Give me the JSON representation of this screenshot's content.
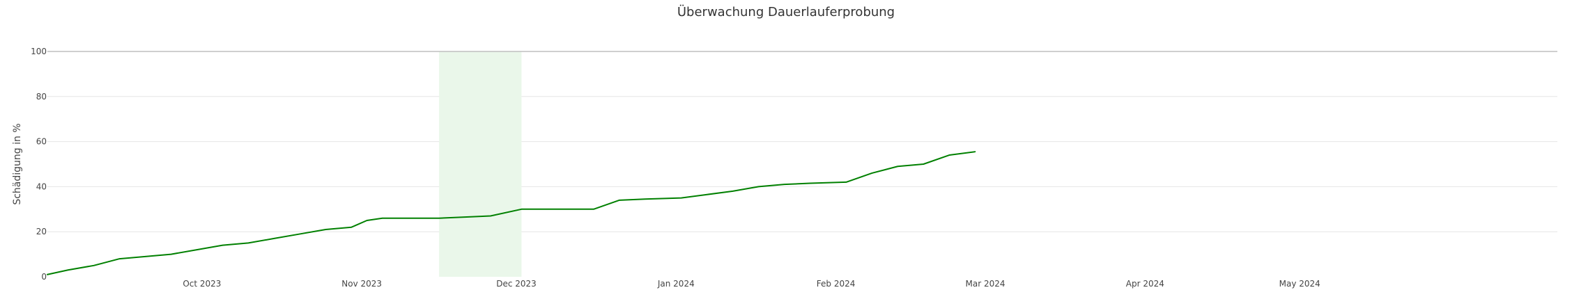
{
  "chart_data": {
    "type": "line",
    "title": "Überwachung Dauerlauferprobung",
    "xlabel": "",
    "ylabel": "Schädigung in %",
    "ylim": [
      0,
      100
    ],
    "xlim": [
      "2023-09-01",
      "2024-06-20"
    ],
    "y_ticks": [
      0,
      20,
      40,
      60,
      80,
      100
    ],
    "x_ticks": [
      {
        "date": "2023-10-01",
        "label": "Oct 2023"
      },
      {
        "date": "2023-11-01",
        "label": "Nov 2023"
      },
      {
        "date": "2023-12-01",
        "label": "Dec 2023"
      },
      {
        "date": "2024-01-01",
        "label": "Jan 2024"
      },
      {
        "date": "2024-02-01",
        "label": "Feb 2024"
      },
      {
        "date": "2024-03-01",
        "label": "Mar 2024"
      },
      {
        "date": "2024-04-01",
        "label": "Apr 2024"
      },
      {
        "date": "2024-05-01",
        "label": "May 2024"
      }
    ],
    "grid": true,
    "colors": {
      "line": "#008000",
      "band": "#eaf7ea",
      "grid": "#e5e5e5",
      "limit_line": "#bfbfbf"
    },
    "highlight_band": {
      "start": "2023-11-16",
      "end": "2023-12-02"
    },
    "limit_line": 100,
    "series": [
      {
        "name": "",
        "x": [
          "2023-09-01",
          "2023-09-05",
          "2023-09-10",
          "2023-09-15",
          "2023-09-20",
          "2023-09-25",
          "2023-09-30",
          "2023-10-05",
          "2023-10-10",
          "2023-10-15",
          "2023-10-20",
          "2023-10-25",
          "2023-10-30",
          "2023-11-02",
          "2023-11-05",
          "2023-11-10",
          "2023-11-16",
          "2023-11-21",
          "2023-11-26",
          "2023-12-02",
          "2023-12-10",
          "2023-12-16",
          "2023-12-21",
          "2023-12-26",
          "2024-01-02",
          "2024-01-07",
          "2024-01-12",
          "2024-01-17",
          "2024-01-22",
          "2024-01-27",
          "2024-02-03",
          "2024-02-08",
          "2024-02-13",
          "2024-02-18",
          "2024-02-23",
          "2024-02-28"
        ],
        "y": [
          1,
          3,
          5,
          8,
          9,
          10,
          12,
          14,
          15,
          17,
          19,
          21,
          22,
          25,
          26,
          26,
          26,
          26.5,
          27,
          30,
          30,
          30,
          34,
          34.5,
          35,
          36.5,
          38,
          40,
          41,
          41.5,
          42,
          46,
          49,
          50,
          54,
          55.5
        ]
      }
    ]
  }
}
